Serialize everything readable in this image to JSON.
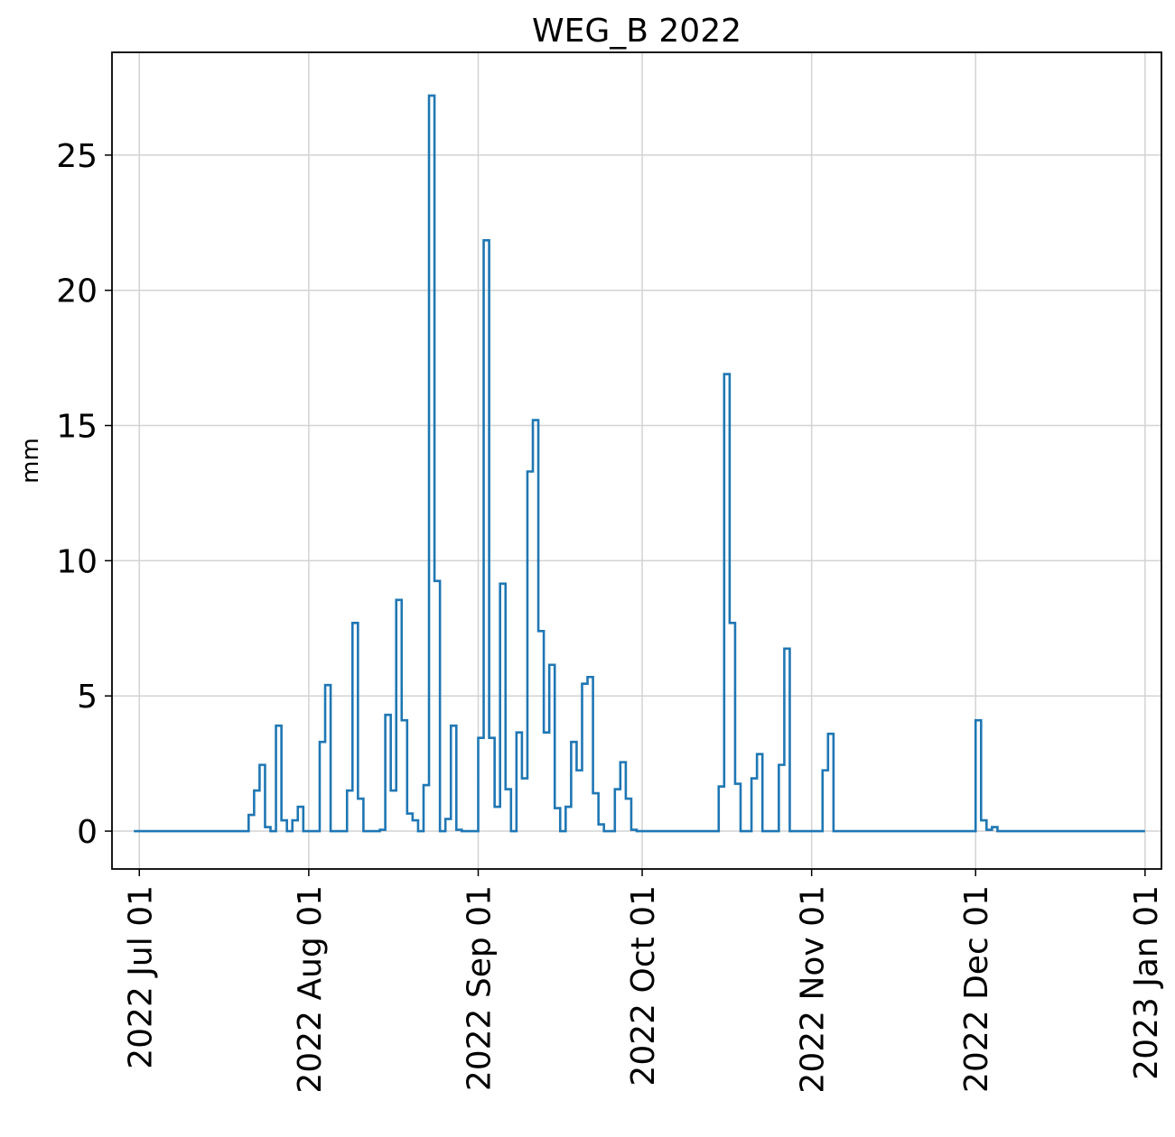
{
  "chart_data": {
    "type": "line",
    "drawstyle": "steps-post",
    "title": "WEG_B 2022",
    "xlabel": "",
    "ylabel": "mm",
    "ylim": [
      -1.4,
      28.8
    ],
    "xlim": [
      "2022-06-26",
      "2023-01-04"
    ],
    "grid": true,
    "x_tick_labels": [
      {
        "date": "2022-07-01",
        "label": "2022 Jul 01"
      },
      {
        "date": "2022-08-01",
        "label": "2022 Aug 01"
      },
      {
        "date": "2022-09-01",
        "label": "2022 Sep 01"
      },
      {
        "date": "2022-10-01",
        "label": "2022 Oct 01"
      },
      {
        "date": "2022-11-01",
        "label": "2022 Nov 01"
      },
      {
        "date": "2022-12-01",
        "label": "2022 Dec 01"
      },
      {
        "date": "2023-01-01",
        "label": "2023 Jan 01"
      }
    ],
    "y_ticks": [
      0,
      5,
      10,
      15,
      20,
      25
    ],
    "y_tick_labels": [
      "0",
      "5",
      "10",
      "15",
      "20",
      "25"
    ],
    "series": [
      {
        "color": "#1f77b4",
        "x": [
          "2022-06-30",
          "2022-07-21",
          "2022-07-22",
          "2022-07-23",
          "2022-07-24",
          "2022-07-25",
          "2022-07-26",
          "2022-07-27",
          "2022-07-28",
          "2022-07-29",
          "2022-07-30",
          "2022-07-31",
          "2022-08-01",
          "2022-08-02",
          "2022-08-03",
          "2022-08-04",
          "2022-08-05",
          "2022-08-06",
          "2022-08-07",
          "2022-08-08",
          "2022-08-09",
          "2022-08-10",
          "2022-08-11",
          "2022-08-12",
          "2022-08-13",
          "2022-08-14",
          "2022-08-15",
          "2022-08-16",
          "2022-08-17",
          "2022-08-18",
          "2022-08-19",
          "2022-08-20",
          "2022-08-21",
          "2022-08-22",
          "2022-08-23",
          "2022-08-24",
          "2022-08-25",
          "2022-08-26",
          "2022-08-27",
          "2022-08-28",
          "2022-08-29",
          "2022-08-30",
          "2022-08-31",
          "2022-09-01",
          "2022-09-02",
          "2022-09-03",
          "2022-09-04",
          "2022-09-05",
          "2022-09-06",
          "2022-09-07",
          "2022-09-08",
          "2022-09-09",
          "2022-09-10",
          "2022-09-11",
          "2022-09-12",
          "2022-09-13",
          "2022-09-14",
          "2022-09-15",
          "2022-09-16",
          "2022-09-17",
          "2022-09-18",
          "2022-09-19",
          "2022-09-20",
          "2022-09-21",
          "2022-09-22",
          "2022-09-23",
          "2022-09-24",
          "2022-09-25",
          "2022-09-26",
          "2022-09-27",
          "2022-09-28",
          "2022-09-29",
          "2022-09-30",
          "2022-10-01",
          "2022-10-02",
          "2022-10-15",
          "2022-10-16",
          "2022-10-17",
          "2022-10-18",
          "2022-10-19",
          "2022-10-20",
          "2022-10-21",
          "2022-10-22",
          "2022-10-23",
          "2022-10-24",
          "2022-10-25",
          "2022-10-26",
          "2022-10-27",
          "2022-10-28",
          "2022-10-29",
          "2022-11-02",
          "2022-11-03",
          "2022-11-04",
          "2022-11-05",
          "2022-11-30",
          "2022-12-01",
          "2022-12-02",
          "2022-12-03",
          "2022-12-04",
          "2022-12-05",
          "2023-01-01"
        ],
        "y": [
          0,
          0.6,
          1.5,
          2.45,
          0.15,
          0,
          3.9,
          0.4,
          0,
          0.4,
          0.9,
          0,
          0,
          0,
          3.3,
          5.4,
          0,
          0,
          0,
          1.5,
          7.7,
          1.2,
          0,
          0,
          0,
          0.05,
          4.3,
          1.5,
          8.55,
          4.1,
          0.65,
          0.4,
          0,
          1.7,
          27.2,
          9.25,
          0,
          0.45,
          3.9,
          0.05,
          0,
          0,
          0,
          3.45,
          21.85,
          3.45,
          0.9,
          9.15,
          1.55,
          0,
          3.65,
          1.95,
          13.3,
          15.2,
          7.4,
          3.65,
          6.15,
          0.85,
          0,
          0.9,
          3.3,
          2.25,
          5.45,
          5.7,
          1.4,
          0.25,
          0,
          0,
          1.55,
          2.55,
          1.2,
          0.05,
          0,
          0,
          0,
          1.65,
          16.9,
          7.7,
          1.75,
          0,
          0,
          1.95,
          2.85,
          0,
          0,
          0,
          2.45,
          6.75,
          0,
          0,
          0,
          2.25,
          3.6,
          0,
          0,
          4.1,
          0.4,
          0.05,
          0.15,
          0,
          0
        ]
      }
    ]
  }
}
